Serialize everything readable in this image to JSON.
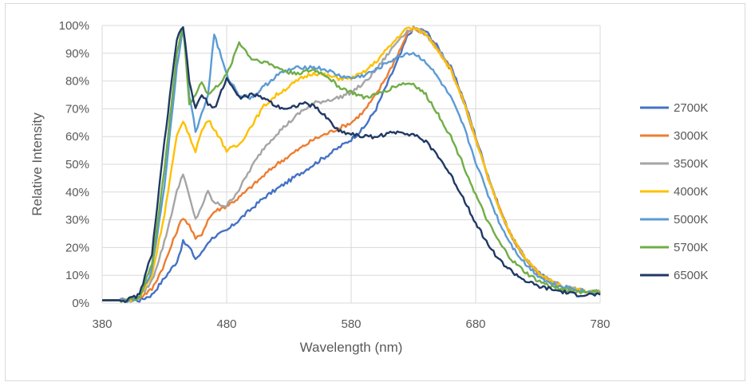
{
  "chart_data": {
    "type": "line",
    "title": "",
    "xlabel": "Wavelength (nm)",
    "ylabel": "Relative Intensity",
    "xlim": [
      380,
      780
    ],
    "ylim": [
      0,
      100
    ],
    "x_ticks": [
      "380",
      "480",
      "580",
      "680",
      "780"
    ],
    "y_ticks": [
      "0%",
      "10%",
      "20%",
      "30%",
      "40%",
      "50%",
      "60%",
      "70%",
      "80%",
      "90%",
      "100%"
    ],
    "grid": "vertical and horizontal",
    "legend_position": "right",
    "series": [
      {
        "name": "2700K",
        "color": "#4472C4",
        "x": [
          380,
          400,
          410,
          420,
          430,
          440,
          445,
          450,
          455,
          460,
          465,
          470,
          480,
          490,
          500,
          510,
          520,
          530,
          540,
          550,
          560,
          570,
          580,
          590,
          600,
          610,
          620,
          625,
          630,
          640,
          650,
          660,
          670,
          680,
          690,
          700,
          710,
          720,
          730,
          740,
          750,
          760,
          770,
          780
        ],
        "y": [
          1,
          1,
          1,
          3,
          9,
          15,
          22,
          20,
          16,
          18,
          22,
          24,
          26,
          30,
          34,
          38,
          41,
          44,
          47,
          50,
          53,
          56,
          59,
          63,
          70,
          80,
          90,
          96,
          99,
          98,
          92,
          85,
          74,
          60,
          46,
          33,
          23,
          16,
          11,
          8,
          6,
          5,
          4,
          4
        ]
      },
      {
        "name": "3000K",
        "color": "#ED7D31",
        "x": [
          380,
          400,
          410,
          420,
          430,
          440,
          445,
          450,
          455,
          460,
          465,
          470,
          480,
          490,
          500,
          510,
          520,
          530,
          540,
          550,
          560,
          570,
          580,
          590,
          600,
          610,
          620,
          625,
          630,
          640,
          650,
          660,
          670,
          680,
          690,
          700,
          710,
          720,
          730,
          740,
          750,
          760,
          770,
          780
        ],
        "y": [
          1,
          1,
          2,
          5,
          14,
          26,
          31,
          28,
          23,
          25,
          30,
          33,
          35,
          38,
          42,
          46,
          50,
          53,
          56,
          59,
          61,
          63,
          65,
          69,
          75,
          83,
          92,
          97,
          99,
          97,
          91,
          84,
          73,
          59,
          45,
          33,
          23,
          16,
          11,
          8,
          6,
          5,
          4,
          4
        ]
      },
      {
        "name": "3500K",
        "color": "#A5A5A5",
        "x": [
          380,
          400,
          410,
          420,
          430,
          440,
          445,
          450,
          455,
          460,
          465,
          470,
          480,
          490,
          500,
          510,
          520,
          530,
          540,
          550,
          560,
          570,
          580,
          590,
          600,
          610,
          620,
          625,
          630,
          640,
          650,
          660,
          670,
          680,
          690,
          700,
          710,
          720,
          730,
          740,
          750,
          760,
          770,
          780
        ],
        "y": [
          1,
          1,
          2,
          8,
          22,
          40,
          47,
          38,
          30,
          35,
          40,
          36,
          35,
          41,
          49,
          56,
          61,
          65,
          69,
          72,
          73,
          74,
          76,
          79,
          84,
          90,
          96,
          98,
          99,
          97,
          91,
          84,
          73,
          59,
          45,
          33,
          23,
          16,
          11,
          8,
          6,
          5,
          4,
          4
        ]
      },
      {
        "name": "4000K",
        "color": "#FFC000",
        "x": [
          380,
          400,
          410,
          420,
          430,
          440,
          445,
          450,
          455,
          460,
          465,
          470,
          480,
          490,
          500,
          510,
          520,
          530,
          540,
          550,
          560,
          570,
          580,
          590,
          600,
          610,
          620,
          625,
          630,
          640,
          650,
          660,
          670,
          680,
          690,
          700,
          710,
          720,
          730,
          740,
          750,
          760,
          770,
          780
        ],
        "y": [
          1,
          1,
          2,
          10,
          32,
          60,
          66,
          60,
          55,
          62,
          66,
          63,
          55,
          57,
          64,
          71,
          75,
          78,
          81,
          83,
          82,
          81,
          81,
          83,
          87,
          92,
          97,
          99,
          99,
          97,
          91,
          84,
          73,
          59,
          45,
          33,
          23,
          16,
          11,
          8,
          6,
          5,
          4,
          4
        ]
      },
      {
        "name": "5000K",
        "color": "#5B9BD5",
        "x": [
          380,
          400,
          410,
          420,
          430,
          440,
          445,
          450,
          455,
          460,
          465,
          470,
          480,
          490,
          500,
          510,
          520,
          530,
          540,
          550,
          560,
          570,
          580,
          590,
          600,
          610,
          620,
          625,
          630,
          640,
          650,
          660,
          670,
          680,
          690,
          700,
          710,
          720,
          730,
          740,
          750,
          760,
          770,
          780
        ],
        "y": [
          1,
          1,
          2,
          12,
          42,
          85,
          100,
          75,
          62,
          68,
          75,
          97,
          82,
          75,
          74,
          78,
          82,
          84,
          85,
          85,
          84,
          82,
          81,
          82,
          84,
          87,
          89,
          90,
          90,
          87,
          81,
          74,
          64,
          51,
          39,
          28,
          20,
          14,
          10,
          7,
          6,
          5,
          4,
          4
        ]
      },
      {
        "name": "5700K",
        "color": "#70AD47",
        "x": [
          380,
          400,
          410,
          420,
          430,
          440,
          445,
          450,
          455,
          460,
          465,
          470,
          480,
          490,
          500,
          510,
          520,
          530,
          540,
          550,
          560,
          570,
          580,
          590,
          600,
          610,
          620,
          625,
          630,
          640,
          650,
          660,
          670,
          680,
          690,
          700,
          710,
          720,
          730,
          740,
          750,
          760,
          770,
          780
        ],
        "y": [
          1,
          1,
          2,
          14,
          48,
          90,
          100,
          72,
          75,
          80,
          75,
          77,
          82,
          94,
          88,
          87,
          85,
          83,
          83,
          84,
          82,
          78,
          76,
          74,
          75,
          77,
          79,
          79,
          79,
          75,
          68,
          60,
          50,
          39,
          29,
          21,
          15,
          11,
          8,
          6,
          5,
          4,
          4,
          4
        ]
      },
      {
        "name": "6500K",
        "color": "#203864",
        "x": [
          380,
          400,
          410,
          420,
          430,
          440,
          445,
          450,
          455,
          460,
          465,
          470,
          480,
          490,
          500,
          510,
          520,
          530,
          540,
          550,
          560,
          570,
          580,
          590,
          600,
          610,
          620,
          625,
          630,
          640,
          650,
          660,
          670,
          680,
          690,
          700,
          710,
          720,
          730,
          740,
          750,
          760,
          770,
          780
        ],
        "y": [
          1,
          1,
          3,
          18,
          58,
          95,
          100,
          80,
          70,
          75,
          72,
          70,
          81,
          74,
          75,
          74,
          71,
          70,
          72,
          71,
          67,
          62,
          61,
          60,
          60,
          61,
          62,
          61,
          61,
          58,
          53,
          46,
          38,
          29,
          21,
          15,
          11,
          8,
          6,
          5,
          4,
          3,
          3,
          3
        ]
      }
    ]
  }
}
